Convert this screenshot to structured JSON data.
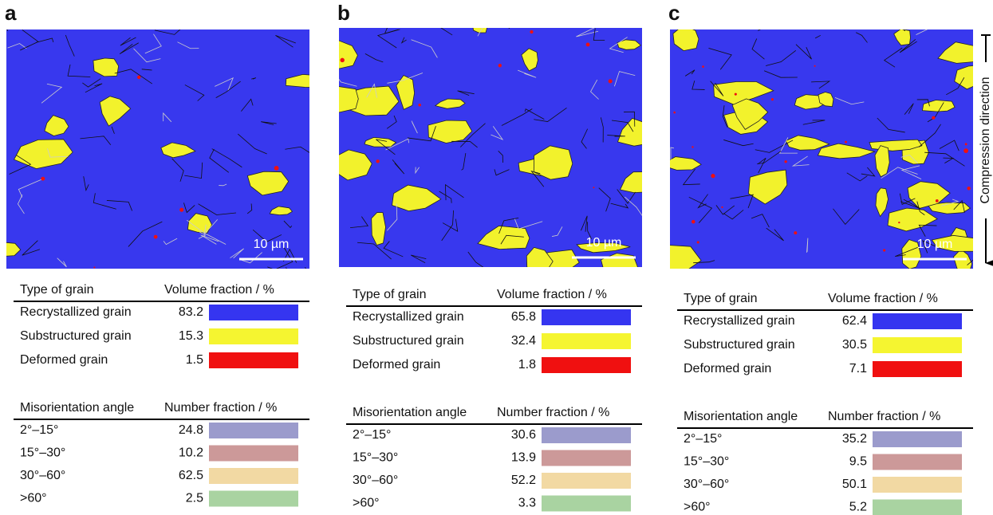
{
  "panels": [
    {
      "label": "a",
      "scale_bar": "10 µm",
      "grain_table": {
        "header": [
          "Type of grain",
          "Volume fraction / %"
        ],
        "rows": [
          {
            "name": "Recrystallized grain",
            "value": 83.2,
            "color": "#3535f0"
          },
          {
            "name": "Substructured grain",
            "value": 15.3,
            "color": "#f5f530"
          },
          {
            "name": "Deformed grain",
            "value": 1.5,
            "color": "#f01010"
          }
        ]
      },
      "misorientation_table": {
        "header": [
          "Misorientation angle",
          "Number fraction / %"
        ],
        "rows": [
          {
            "name": "2°–15°",
            "value": 24.8,
            "color": "#9b9bcc"
          },
          {
            "name": "15°–30°",
            "value": 10.2,
            "color": "#cc9999"
          },
          {
            "name": "30°–60°",
            "value": 62.5,
            "color": "#f2d9a3"
          },
          {
            "name": ">60°",
            "value": 2.5,
            "color": "#a9d3a1"
          }
        ]
      }
    },
    {
      "label": "b",
      "scale_bar": "10 µm",
      "grain_table": {
        "header": [
          "Type of grain",
          "Volume fraction / %"
        ],
        "rows": [
          {
            "name": "Recrystallized grain",
            "value": 65.8,
            "color": "#3535f0"
          },
          {
            "name": "Substructured grain",
            "value": 32.4,
            "color": "#f5f530"
          },
          {
            "name": "Deformed grain",
            "value": 1.8,
            "color": "#f01010"
          }
        ]
      },
      "misorientation_table": {
        "header": [
          "Misorientation angle",
          "Number fraction / %"
        ],
        "rows": [
          {
            "name": "2°–15°",
            "value": 30.6,
            "color": "#9b9bcc"
          },
          {
            "name": "15°–30°",
            "value": 13.9,
            "color": "#cc9999"
          },
          {
            "name": "30°–60°",
            "value": 52.2,
            "color": "#f2d9a3"
          },
          {
            "name": ">60°",
            "value": 3.3,
            "color": "#a9d3a1"
          }
        ]
      }
    },
    {
      "label": "c",
      "scale_bar": "10 µm",
      "grain_table": {
        "header": [
          "Type of grain",
          "Volume fraction / %"
        ],
        "rows": [
          {
            "name": "Recrystallized grain",
            "value": 62.4,
            "color": "#3535f0"
          },
          {
            "name": "Substructured grain",
            "value": 30.5,
            "color": "#f5f530"
          },
          {
            "name": "Deformed grain",
            "value": 7.1,
            "color": "#f01010"
          }
        ]
      },
      "misorientation_table": {
        "header": [
          "Misorientation angle",
          "Number fraction / %"
        ],
        "rows": [
          {
            "name": "2°–15°",
            "value": 35.2,
            "color": "#9b9bcc"
          },
          {
            "name": "15°–30°",
            "value": 9.5,
            "color": "#cc9999"
          },
          {
            "name": "30°–60°",
            "value": 50.1,
            "color": "#f2d9a3"
          },
          {
            "name": ">60°",
            "value": 5.2,
            "color": "#a9d3a1"
          }
        ]
      }
    }
  ],
  "compression_direction": "Compression direction"
}
